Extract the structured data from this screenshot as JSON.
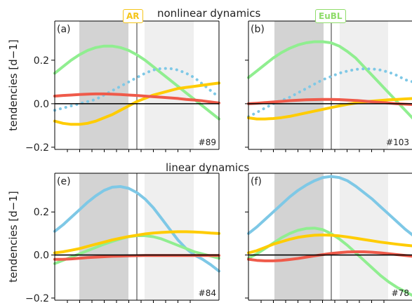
{
  "header": {
    "top_title": "nonlinear dynamics",
    "bottom_title": "linear dynamics",
    "badge_ar": "AR",
    "badge_eubl": "EuBL",
    "ar_color": "#f5c518",
    "eubl_color": "#8fdc6a"
  },
  "colors": {
    "blue": "#7ec8e6",
    "green": "#90ee90",
    "yellow": "#ffcc00",
    "red": "#ef5a4a",
    "shade_dark": "#d3d3d3",
    "shade_light": "#efefef"
  },
  "chart_data": [
    {
      "type": "line",
      "panel": "(a)",
      "id_label": "#89",
      "ylabel": "tendencies [d−1]",
      "ylim": [
        -0.21,
        0.38
      ],
      "yticks": [
        "0.2",
        "0.0",
        "−0.2"
      ],
      "ytick_values": [
        0.2,
        0.0,
        -0.2
      ],
      "x": [
        0,
        1,
        2,
        3,
        4,
        5,
        6,
        7,
        8,
        9,
        10,
        11,
        12,
        13,
        14,
        15,
        16,
        17,
        18,
        19,
        20
      ],
      "series": [
        {
          "color": "green",
          "style": "solid",
          "values": [
            0.14,
            0.17,
            0.2,
            0.225,
            0.245,
            0.258,
            0.265,
            0.265,
            0.258,
            0.245,
            0.225,
            0.2,
            0.17,
            0.14,
            0.11,
            0.08,
            0.05,
            0.02,
            -0.01,
            -0.04,
            -0.07
          ]
        },
        {
          "color": "blue",
          "style": "dotted",
          "values": [
            -0.03,
            -0.02,
            -0.01,
            0.0,
            0.01,
            0.02,
            0.04,
            0.06,
            0.08,
            0.1,
            0.12,
            0.14,
            0.155,
            0.162,
            0.162,
            0.155,
            0.14,
            0.12,
            0.09,
            0.06,
            0.03
          ]
        },
        {
          "color": "yellow",
          "style": "solid",
          "values": [
            -0.08,
            -0.09,
            -0.095,
            -0.095,
            -0.09,
            -0.08,
            -0.065,
            -0.05,
            -0.03,
            -0.01,
            0.01,
            0.025,
            0.04,
            0.05,
            0.06,
            0.07,
            0.075,
            0.08,
            0.085,
            0.09,
            0.095
          ]
        },
        {
          "color": "red",
          "style": "solid",
          "values": [
            0.035,
            0.038,
            0.04,
            0.042,
            0.044,
            0.045,
            0.045,
            0.044,
            0.042,
            0.04,
            0.038,
            0.035,
            0.032,
            0.03,
            0.027,
            0.024,
            0.02,
            0.017,
            0.013,
            0.008,
            0.003
          ]
        }
      ]
    },
    {
      "type": "line",
      "panel": "(b)",
      "id_label": "#103",
      "ylim": [
        -0.21,
        0.38
      ],
      "x": [
        0,
        1,
        2,
        3,
        4,
        5,
        6,
        7,
        8,
        9,
        10,
        11,
        12,
        13,
        14,
        15,
        16,
        17,
        18,
        19,
        20
      ],
      "series": [
        {
          "color": "green",
          "style": "solid",
          "values": [
            0.12,
            0.15,
            0.18,
            0.21,
            0.235,
            0.255,
            0.27,
            0.28,
            0.285,
            0.285,
            0.28,
            0.265,
            0.24,
            0.21,
            0.17,
            0.13,
            0.09,
            0.05,
            0.01,
            -0.03,
            -0.07
          ]
        },
        {
          "color": "blue",
          "style": "dotted",
          "values": [
            -0.06,
            -0.04,
            -0.02,
            0.0,
            0.015,
            0.03,
            0.05,
            0.07,
            0.09,
            0.11,
            0.125,
            0.14,
            0.15,
            0.158,
            0.16,
            0.16,
            0.155,
            0.145,
            0.13,
            0.11,
            0.1
          ]
        },
        {
          "color": "yellow",
          "style": "solid",
          "values": [
            -0.065,
            -0.07,
            -0.07,
            -0.068,
            -0.064,
            -0.058,
            -0.05,
            -0.042,
            -0.034,
            -0.026,
            -0.018,
            -0.01,
            -0.003,
            0.003,
            0.008,
            0.012,
            0.015,
            0.018,
            0.02,
            0.022,
            0.024
          ]
        },
        {
          "color": "red",
          "style": "solid",
          "values": [
            0.0,
            0.002,
            0.005,
            0.008,
            0.011,
            0.014,
            0.016,
            0.018,
            0.019,
            0.02,
            0.02,
            0.019,
            0.017,
            0.015,
            0.012,
            0.009,
            0.006,
            0.003,
            0.0,
            -0.002,
            -0.004
          ]
        }
      ]
    },
    {
      "type": "line",
      "panel": "(e)",
      "id_label": "#84",
      "ylabel": "tendencies [d−1]",
      "ylim": [
        -0.21,
        0.38
      ],
      "yticks": [
        "0.2",
        "0.0",
        "−0.2"
      ],
      "ytick_values": [
        0.2,
        0.0,
        -0.2
      ],
      "x": [
        0,
        1,
        2,
        3,
        4,
        5,
        6,
        7,
        8,
        9,
        10,
        11,
        12,
        13,
        14,
        15,
        16,
        17,
        18,
        19,
        20
      ],
      "series": [
        {
          "color": "blue",
          "style": "solid",
          "values": [
            0.11,
            0.14,
            0.175,
            0.21,
            0.245,
            0.275,
            0.3,
            0.315,
            0.318,
            0.31,
            0.29,
            0.26,
            0.22,
            0.17,
            0.12,
            0.07,
            0.03,
            -0.0,
            -0.02,
            -0.045,
            -0.075
          ]
        },
        {
          "color": "green",
          "style": "solid",
          "values": [
            -0.04,
            -0.025,
            -0.01,
            0.005,
            0.02,
            0.035,
            0.05,
            0.063,
            0.075,
            0.085,
            0.09,
            0.09,
            0.085,
            0.075,
            0.06,
            0.045,
            0.03,
            0.015,
            0.005,
            -0.005,
            -0.015
          ]
        },
        {
          "color": "yellow",
          "style": "solid",
          "values": [
            0.01,
            0.015,
            0.022,
            0.03,
            0.04,
            0.05,
            0.06,
            0.07,
            0.078,
            0.086,
            0.092,
            0.098,
            0.102,
            0.105,
            0.107,
            0.108,
            0.108,
            0.107,
            0.105,
            0.102,
            0.1
          ]
        },
        {
          "color": "red",
          "style": "solid",
          "values": [
            -0.02,
            -0.02,
            -0.018,
            -0.015,
            -0.012,
            -0.01,
            -0.008,
            -0.006,
            -0.005,
            -0.004,
            -0.003,
            -0.002,
            -0.002,
            -0.002,
            -0.002,
            -0.002,
            -0.002,
            -0.002,
            -0.002,
            -0.002,
            -0.002
          ]
        }
      ]
    },
    {
      "type": "line",
      "panel": "(f)",
      "id_label": "#78",
      "ylim": [
        -0.21,
        0.38
      ],
      "x": [
        0,
        1,
        2,
        3,
        4,
        5,
        6,
        7,
        8,
        9,
        10,
        11,
        12,
        13,
        14,
        15,
        16,
        17,
        18,
        19,
        20
      ],
      "series": [
        {
          "color": "blue",
          "style": "solid",
          "values": [
            0.1,
            0.13,
            0.165,
            0.2,
            0.235,
            0.27,
            0.3,
            0.325,
            0.345,
            0.36,
            0.365,
            0.36,
            0.345,
            0.32,
            0.29,
            0.26,
            0.225,
            0.19,
            0.155,
            0.12,
            0.09
          ]
        },
        {
          "color": "green",
          "style": "solid",
          "values": [
            -0.015,
            0.005,
            0.03,
            0.055,
            0.08,
            0.1,
            0.115,
            0.123,
            0.125,
            0.118,
            0.1,
            0.075,
            0.045,
            0.01,
            -0.025,
            -0.06,
            -0.095,
            -0.125,
            -0.15,
            -0.17,
            -0.19
          ]
        },
        {
          "color": "yellow",
          "style": "solid",
          "values": [
            0.01,
            0.02,
            0.035,
            0.05,
            0.062,
            0.073,
            0.082,
            0.088,
            0.092,
            0.093,
            0.092,
            0.089,
            0.084,
            0.078,
            0.072,
            0.066,
            0.06,
            0.055,
            0.05,
            0.046,
            0.042
          ]
        },
        {
          "color": "red",
          "style": "solid",
          "values": [
            -0.02,
            -0.025,
            -0.027,
            -0.027,
            -0.025,
            -0.021,
            -0.016,
            -0.01,
            -0.004,
            0.002,
            0.007,
            0.011,
            0.014,
            0.015,
            0.015,
            0.013,
            0.01,
            0.006,
            0.002,
            -0.002,
            -0.006
          ]
        }
      ]
    }
  ]
}
